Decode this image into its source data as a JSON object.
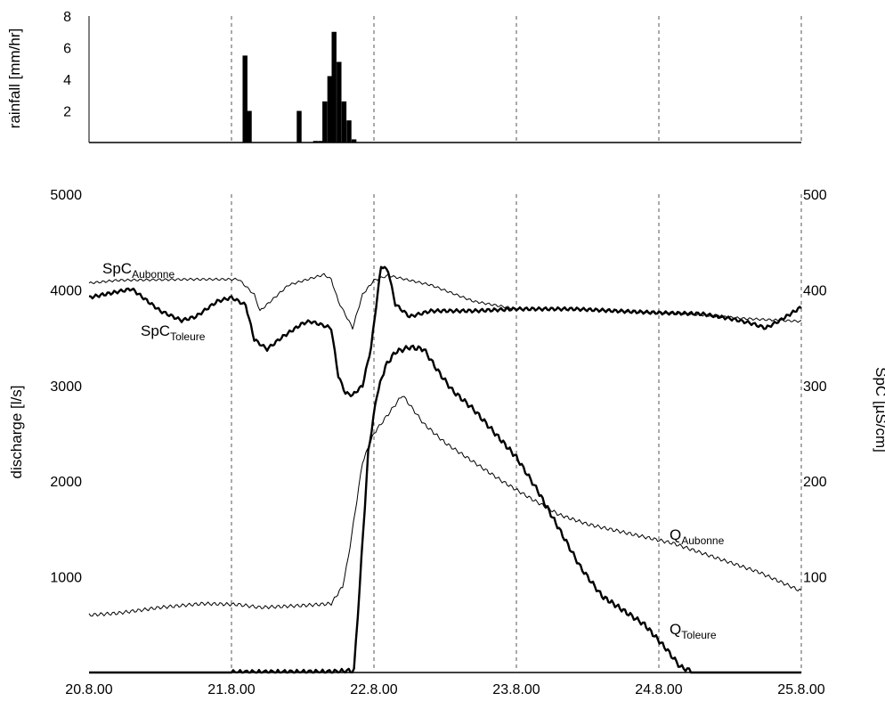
{
  "chart_data": [
    {
      "type": "bar",
      "panel": "rainfall",
      "ylabel": "rainfall [mm/hr]",
      "ylim": [
        0,
        8
      ],
      "yticks": [
        2,
        4,
        6,
        8
      ],
      "xlim": [
        20.8,
        25.8
      ],
      "grid": "vertical dashed lines at 21.8, 22.8, 23.8, 24.8",
      "bars": [
        {
          "x": 21.895,
          "value": 5.5
        },
        {
          "x": 21.925,
          "value": 2.0
        },
        {
          "x": 22.275,
          "value": 2.0
        },
        {
          "x": 22.39,
          "value": 0.1
        },
        {
          "x": 22.425,
          "value": 0.1
        },
        {
          "x": 22.455,
          "value": 2.6
        },
        {
          "x": 22.49,
          "value": 4.2
        },
        {
          "x": 22.52,
          "value": 7.0
        },
        {
          "x": 22.555,
          "value": 5.1
        },
        {
          "x": 22.59,
          "value": 2.6
        },
        {
          "x": 22.625,
          "value": 1.4
        },
        {
          "x": 22.66,
          "value": 0.2
        }
      ]
    },
    {
      "type": "line",
      "panel": "discharge and specific conductance",
      "ylabel": "discharge [l/s]",
      "y2label": "SpC [µS/cm]",
      "ylim": [
        0,
        5000
      ],
      "y2lim": [
        0,
        500
      ],
      "yticks": [
        1000,
        2000,
        3000,
        4000,
        5000
      ],
      "y2ticks": [
        100,
        200,
        300,
        400,
        500
      ],
      "xlim": [
        20.8,
        25.8
      ],
      "xticks": [
        "20.8.00",
        "21.8.00",
        "22.8.00",
        "23.8.00",
        "24.8.00",
        "25.8.00"
      ],
      "xtick_values": [
        20.8,
        21.8,
        22.8,
        23.8,
        24.8,
        25.8
      ],
      "grid": "vertical dashed lines at 21.8, 22.8, 23.8, 24.8",
      "series": [
        {
          "name_main": "SpC",
          "name_sub": "Aubonne",
          "axis": "right",
          "color": "#000000",
          "weight": "thin",
          "x": [
            20.8,
            21.0,
            21.5,
            21.85,
            21.96,
            22.0,
            22.2,
            22.45,
            22.5,
            22.55,
            22.65,
            22.72,
            22.8,
            22.9,
            23.2,
            23.5,
            23.8,
            24.2,
            24.6,
            25.0,
            25.4,
            25.8
          ],
          "y": [
            407,
            410,
            411,
            411,
            395,
            378,
            405,
            416,
            411,
            388,
            360,
            395,
            410,
            415,
            405,
            388,
            380,
            380,
            377,
            375,
            370,
            367
          ]
        },
        {
          "name_main": "SpC",
          "name_sub": "Toleure",
          "axis": "right",
          "color": "#000000",
          "weight": "thick",
          "x": [
            20.8,
            21.0,
            21.1,
            21.3,
            21.45,
            21.55,
            21.7,
            21.8,
            21.9,
            21.96,
            22.05,
            22.15,
            22.3,
            22.35,
            22.4,
            22.5,
            22.55,
            22.6,
            22.65,
            22.72,
            22.78,
            22.85,
            22.9,
            22.95,
            23.05,
            23.2,
            23.5,
            23.8,
            24.2,
            24.5,
            24.8,
            25.1,
            25.3,
            25.45,
            25.55,
            25.65,
            25.8
          ],
          "y": [
            392,
            398,
            401,
            378,
            368,
            372,
            388,
            392,
            384,
            348,
            338,
            350,
            365,
            367,
            365,
            360,
            310,
            292,
            290,
            300,
            340,
            425,
            420,
            385,
            372,
            378,
            378,
            380,
            380,
            378,
            376,
            375,
            370,
            365,
            360,
            368,
            382
          ]
        },
        {
          "name_main": "Q",
          "name_sub": "Aubonne",
          "axis": "left",
          "color": "#000000",
          "weight": "thin",
          "x": [
            20.8,
            21.0,
            21.3,
            21.6,
            21.85,
            22.0,
            22.3,
            22.5,
            22.58,
            22.62,
            22.68,
            22.72,
            22.8,
            22.9,
            23.0,
            23.15,
            23.3,
            23.5,
            23.7,
            23.9,
            24.1,
            24.3,
            24.6,
            24.9,
            25.2,
            25.5,
            25.8
          ],
          "y": [
            600,
            620,
            680,
            720,
            710,
            680,
            700,
            720,
            900,
            1200,
            1800,
            2200,
            2500,
            2700,
            2900,
            2600,
            2400,
            2200,
            2000,
            1820,
            1650,
            1550,
            1450,
            1350,
            1200,
            1050,
            850
          ]
        },
        {
          "name_main": "Q",
          "name_sub": "Toleure",
          "axis": "left",
          "color": "#000000",
          "weight": "thick",
          "x": [
            20.8,
            21.8,
            22.5,
            22.66,
            22.7,
            22.76,
            22.82,
            22.88,
            22.95,
            23.05,
            23.15,
            23.25,
            23.35,
            23.5,
            23.65,
            23.8,
            23.95,
            24.1,
            24.25,
            24.4,
            24.55,
            24.7,
            24.85,
            24.95,
            25.05,
            25.8
          ],
          "y": [
            0,
            0,
            5,
            20,
            900,
            2300,
            2900,
            3200,
            3350,
            3400,
            3380,
            3150,
            2950,
            2750,
            2500,
            2250,
            1900,
            1500,
            1100,
            800,
            650,
            500,
            250,
            60,
            0,
            0
          ]
        }
      ]
    }
  ]
}
